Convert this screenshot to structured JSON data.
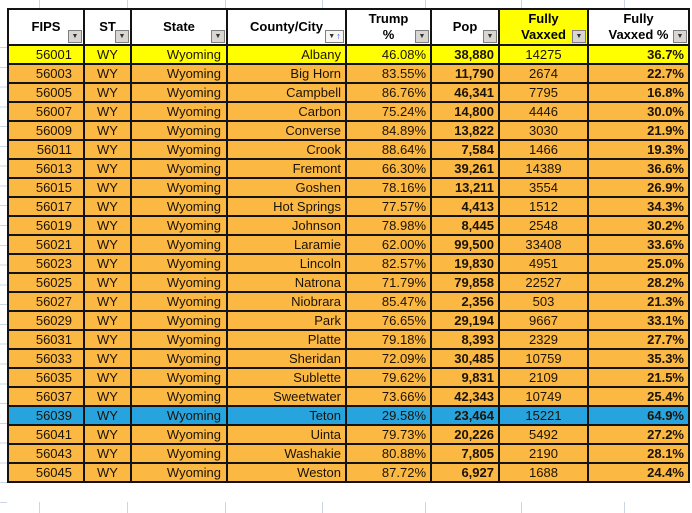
{
  "app": {
    "view": "spreadsheet-autofilter-table"
  },
  "colors": {
    "row_default": "#fbb843",
    "yellow": "#ffff00",
    "blue": "#27a4dd",
    "header_bg": "#ffffff",
    "header_highlight_bg": "#ffff00",
    "grid_border": "#131313",
    "gutter_gridline": "#ccd6e3"
  },
  "icons": {
    "filter_dropdown_icon": "▼",
    "sort_ascending_icon": "↑"
  },
  "table": {
    "columns": [
      {
        "key": "fips",
        "label": "FIPS",
        "label_lines": [
          "FIPS"
        ],
        "sorted": false
      },
      {
        "key": "st",
        "label": "ST",
        "label_lines": [
          "ST"
        ],
        "sorted": false
      },
      {
        "key": "state",
        "label": "State",
        "label_lines": [
          "State"
        ],
        "sorted": false
      },
      {
        "key": "county",
        "label": "County/City",
        "label_lines": [
          "County/City"
        ],
        "sorted": true
      },
      {
        "key": "trump_pct",
        "label": "Trump %",
        "label_lines": [
          "Trump",
          "%"
        ],
        "sorted": false
      },
      {
        "key": "pop",
        "label": "Pop",
        "label_lines": [
          "Pop"
        ],
        "sorted": false
      },
      {
        "key": "fully_vaxxed",
        "label": "Fully Vaxxed",
        "label_lines": [
          "Fully",
          "Vaxxed"
        ],
        "sorted": false,
        "header_highlight": true
      },
      {
        "key": "fully_vaxxed_pct",
        "label": "Fully Vaxxed %",
        "label_lines": [
          "Fully",
          "Vaxxed %"
        ],
        "sorted": false
      }
    ],
    "rows": [
      {
        "fips": "56001",
        "st": "WY",
        "state": "Wyoming",
        "county": "Albany",
        "trump_pct": "46.08%",
        "pop": "38,880",
        "fully_vaxxed": "14275",
        "fully_vaxxed_pct": "36.7%",
        "highlight": "yellow"
      },
      {
        "fips": "56003",
        "st": "WY",
        "state": "Wyoming",
        "county": "Big Horn",
        "trump_pct": "83.55%",
        "pop": "11,790",
        "fully_vaxxed": "2674",
        "fully_vaxxed_pct": "22.7%",
        "highlight": null
      },
      {
        "fips": "56005",
        "st": "WY",
        "state": "Wyoming",
        "county": "Campbell",
        "trump_pct": "86.76%",
        "pop": "46,341",
        "fully_vaxxed": "7795",
        "fully_vaxxed_pct": "16.8%",
        "highlight": null
      },
      {
        "fips": "56007",
        "st": "WY",
        "state": "Wyoming",
        "county": "Carbon",
        "trump_pct": "75.24%",
        "pop": "14,800",
        "fully_vaxxed": "4446",
        "fully_vaxxed_pct": "30.0%",
        "highlight": null
      },
      {
        "fips": "56009",
        "st": "WY",
        "state": "Wyoming",
        "county": "Converse",
        "trump_pct": "84.89%",
        "pop": "13,822",
        "fully_vaxxed": "3030",
        "fully_vaxxed_pct": "21.9%",
        "highlight": null
      },
      {
        "fips": "56011",
        "st": "WY",
        "state": "Wyoming",
        "county": "Crook",
        "trump_pct": "88.64%",
        "pop": "7,584",
        "fully_vaxxed": "1466",
        "fully_vaxxed_pct": "19.3%",
        "highlight": null
      },
      {
        "fips": "56013",
        "st": "WY",
        "state": "Wyoming",
        "county": "Fremont",
        "trump_pct": "66.30%",
        "pop": "39,261",
        "fully_vaxxed": "14389",
        "fully_vaxxed_pct": "36.6%",
        "highlight": null
      },
      {
        "fips": "56015",
        "st": "WY",
        "state": "Wyoming",
        "county": "Goshen",
        "trump_pct": "78.16%",
        "pop": "13,211",
        "fully_vaxxed": "3554",
        "fully_vaxxed_pct": "26.9%",
        "highlight": null
      },
      {
        "fips": "56017",
        "st": "WY",
        "state": "Wyoming",
        "county": "Hot Springs",
        "trump_pct": "77.57%",
        "pop": "4,413",
        "fully_vaxxed": "1512",
        "fully_vaxxed_pct": "34.3%",
        "highlight": null
      },
      {
        "fips": "56019",
        "st": "WY",
        "state": "Wyoming",
        "county": "Johnson",
        "trump_pct": "78.98%",
        "pop": "8,445",
        "fully_vaxxed": "2548",
        "fully_vaxxed_pct": "30.2%",
        "highlight": null
      },
      {
        "fips": "56021",
        "st": "WY",
        "state": "Wyoming",
        "county": "Laramie",
        "trump_pct": "62.00%",
        "pop": "99,500",
        "fully_vaxxed": "33408",
        "fully_vaxxed_pct": "33.6%",
        "highlight": null
      },
      {
        "fips": "56023",
        "st": "WY",
        "state": "Wyoming",
        "county": "Lincoln",
        "trump_pct": "82.57%",
        "pop": "19,830",
        "fully_vaxxed": "4951",
        "fully_vaxxed_pct": "25.0%",
        "highlight": null
      },
      {
        "fips": "56025",
        "st": "WY",
        "state": "Wyoming",
        "county": "Natrona",
        "trump_pct": "71.79%",
        "pop": "79,858",
        "fully_vaxxed": "22527",
        "fully_vaxxed_pct": "28.2%",
        "highlight": null
      },
      {
        "fips": "56027",
        "st": "WY",
        "state": "Wyoming",
        "county": "Niobrara",
        "trump_pct": "85.47%",
        "pop": "2,356",
        "fully_vaxxed": "503",
        "fully_vaxxed_pct": "21.3%",
        "highlight": null
      },
      {
        "fips": "56029",
        "st": "WY",
        "state": "Wyoming",
        "county": "Park",
        "trump_pct": "76.65%",
        "pop": "29,194",
        "fully_vaxxed": "9667",
        "fully_vaxxed_pct": "33.1%",
        "highlight": null
      },
      {
        "fips": "56031",
        "st": "WY",
        "state": "Wyoming",
        "county": "Platte",
        "trump_pct": "79.18%",
        "pop": "8,393",
        "fully_vaxxed": "2329",
        "fully_vaxxed_pct": "27.7%",
        "highlight": null
      },
      {
        "fips": "56033",
        "st": "WY",
        "state": "Wyoming",
        "county": "Sheridan",
        "trump_pct": "72.09%",
        "pop": "30,485",
        "fully_vaxxed": "10759",
        "fully_vaxxed_pct": "35.3%",
        "highlight": null
      },
      {
        "fips": "56035",
        "st": "WY",
        "state": "Wyoming",
        "county": "Sublette",
        "trump_pct": "79.62%",
        "pop": "9,831",
        "fully_vaxxed": "2109",
        "fully_vaxxed_pct": "21.5%",
        "highlight": null
      },
      {
        "fips": "56037",
        "st": "WY",
        "state": "Wyoming",
        "county": "Sweetwater",
        "trump_pct": "73.66%",
        "pop": "42,343",
        "fully_vaxxed": "10749",
        "fully_vaxxed_pct": "25.4%",
        "highlight": null
      },
      {
        "fips": "56039",
        "st": "WY",
        "state": "Wyoming",
        "county": "Teton",
        "trump_pct": "29.58%",
        "pop": "23,464",
        "fully_vaxxed": "15221",
        "fully_vaxxed_pct": "64.9%",
        "highlight": "blue"
      },
      {
        "fips": "56041",
        "st": "WY",
        "state": "Wyoming",
        "county": "Uinta",
        "trump_pct": "79.73%",
        "pop": "20,226",
        "fully_vaxxed": "5492",
        "fully_vaxxed_pct": "27.2%",
        "highlight": null
      },
      {
        "fips": "56043",
        "st": "WY",
        "state": "Wyoming",
        "county": "Washakie",
        "trump_pct": "80.88%",
        "pop": "7,805",
        "fully_vaxxed": "2190",
        "fully_vaxxed_pct": "28.1%",
        "highlight": null
      },
      {
        "fips": "56045",
        "st": "WY",
        "state": "Wyoming",
        "county": "Weston",
        "trump_pct": "87.72%",
        "pop": "6,927",
        "fully_vaxxed": "1688",
        "fully_vaxxed_pct": "24.4%",
        "highlight": null
      }
    ]
  }
}
